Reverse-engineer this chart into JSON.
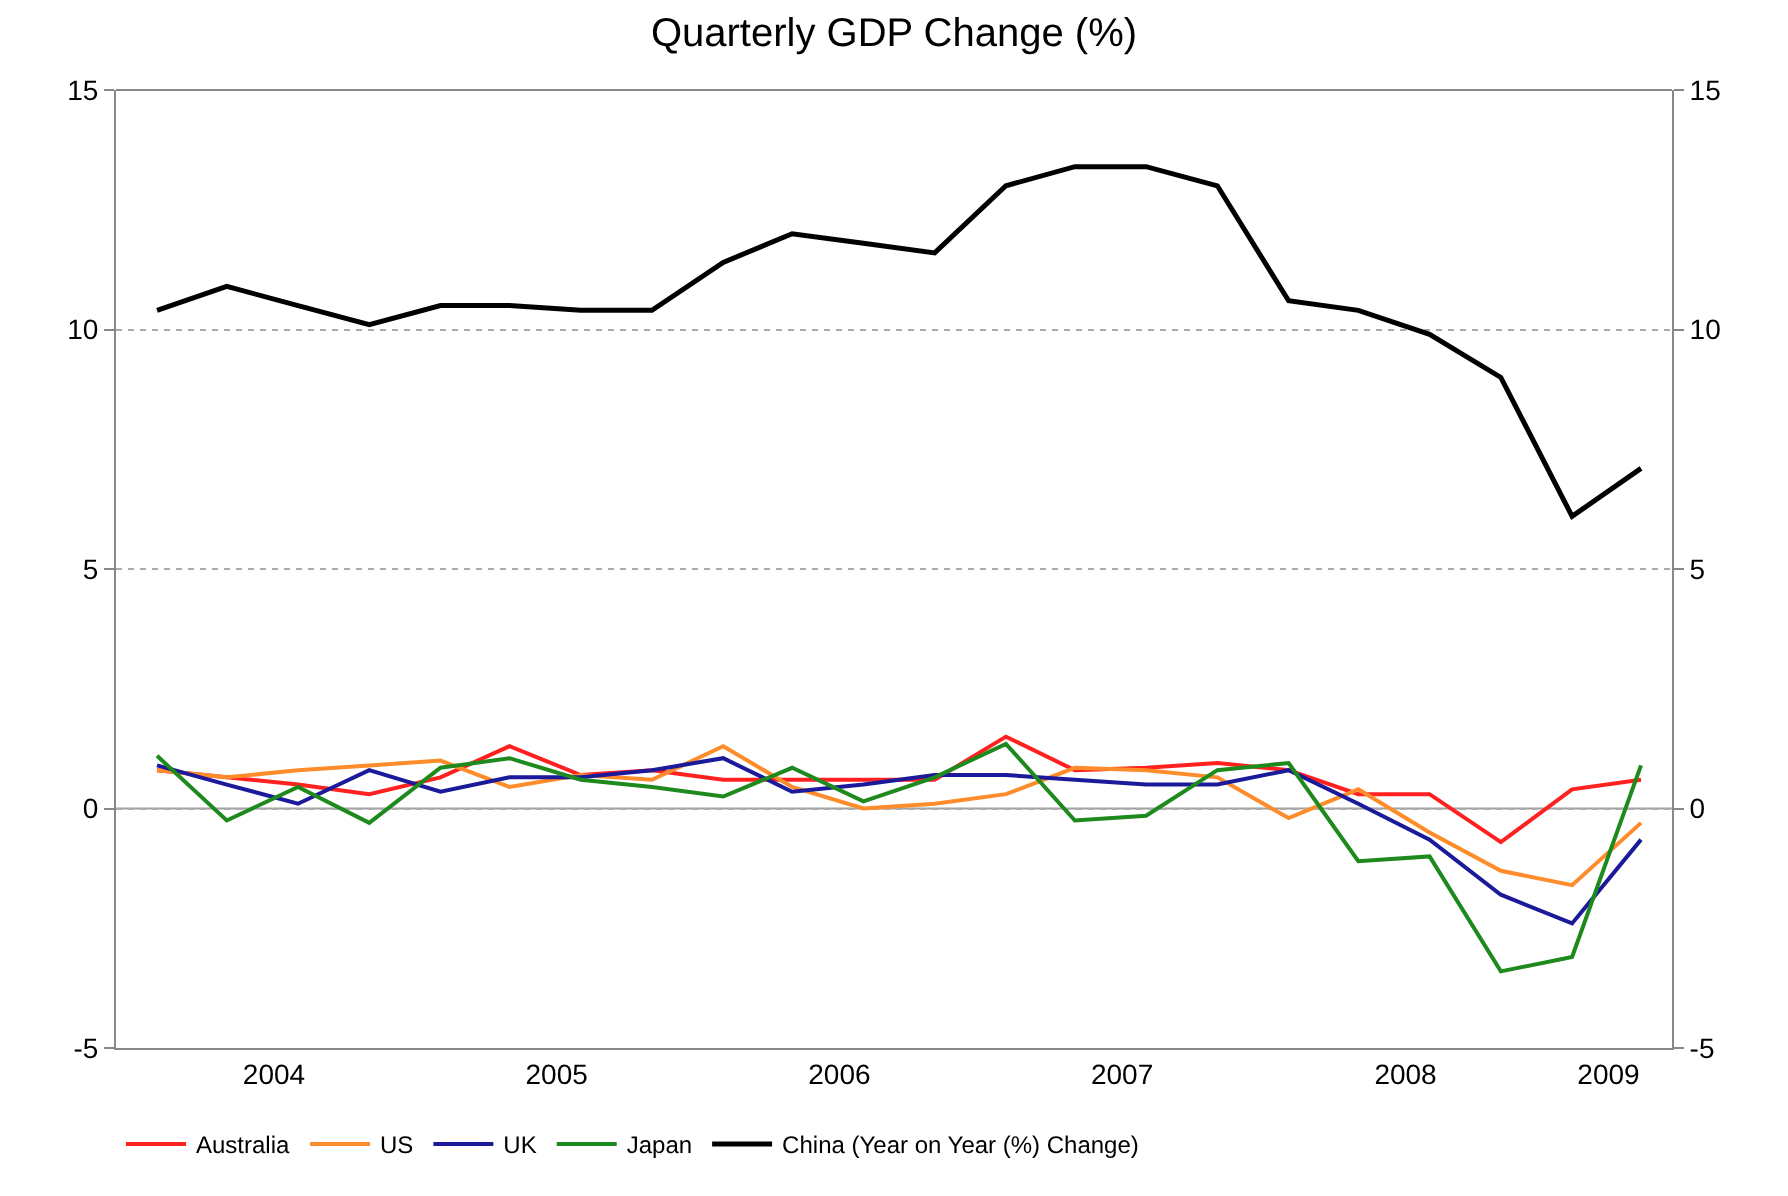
{
  "chart_data": {
    "type": "line",
    "title": "Quarterly GDP Change (%)",
    "x": [
      "2004-02",
      "2004-05",
      "2004-08",
      "2004-11",
      "2005-02",
      "2005-05",
      "2005-08",
      "2005-11",
      "2006-02",
      "2006-05",
      "2006-08",
      "2006-11",
      "2007-02",
      "2007-05",
      "2007-08",
      "2007-11",
      "2008-02",
      "2008-05",
      "2008-08",
      "2008-11",
      "2009-02",
      "2009-05"
    ],
    "series": [
      {
        "name": "Australia",
        "color": "#ff2020",
        "values": [
          0.8,
          0.65,
          0.5,
          0.3,
          0.65,
          1.3,
          0.7,
          0.8,
          0.6,
          0.6,
          0.6,
          0.6,
          1.5,
          0.8,
          0.85,
          0.95,
          0.8,
          0.3,
          0.3,
          -0.7,
          0.4,
          0.6
        ]
      },
      {
        "name": "US",
        "color": "#ff8c2a",
        "values": [
          0.8,
          0.65,
          0.8,
          0.9,
          1.0,
          0.45,
          0.7,
          0.6,
          1.3,
          0.45,
          0.0,
          0.1,
          0.3,
          0.85,
          0.8,
          0.65,
          -0.2,
          0.4,
          -0.5,
          -1.3,
          -1.6,
          -0.3
        ]
      },
      {
        "name": "UK",
        "color": "#1a1a9a",
        "values": [
          0.9,
          0.5,
          0.1,
          0.8,
          0.35,
          0.65,
          0.65,
          0.8,
          1.05,
          0.35,
          0.5,
          0.7,
          0.7,
          0.6,
          0.5,
          0.5,
          0.8,
          0.1,
          -0.65,
          -1.8,
          -2.4,
          -0.65
        ]
      },
      {
        "name": "Japan",
        "color": "#1e8a1e",
        "values": [
          1.1,
          -0.25,
          0.45,
          -0.3,
          0.85,
          1.05,
          0.6,
          0.45,
          0.25,
          0.85,
          0.15,
          0.65,
          1.35,
          -0.25,
          -0.15,
          0.8,
          0.95,
          -1.1,
          -1.0,
          -3.4,
          -3.1,
          0.9
        ]
      },
      {
        "name": "China (Year on Year (%) Change)",
        "color": "#000000",
        "values": [
          10.4,
          10.9,
          10.5,
          10.1,
          10.5,
          10.5,
          10.4,
          10.4,
          11.4,
          12.0,
          11.8,
          11.6,
          13.0,
          13.4,
          13.4,
          13.0,
          10.6,
          10.4,
          9.9,
          9.0,
          6.1,
          7.1
        ]
      }
    ],
    "xlim": [
      "2003-12-10",
      "2009-06-10"
    ],
    "xticks": [
      {
        "value": "2004-07-01",
        "label": "2004"
      },
      {
        "value": "2005-07-01",
        "label": "2005"
      },
      {
        "value": "2006-07-01",
        "label": "2006"
      },
      {
        "value": "2007-07-01",
        "label": "2007"
      },
      {
        "value": "2008-07-01",
        "label": "2008"
      },
      {
        "value": "2009-03-20",
        "label": "2009"
      }
    ],
    "ylim": [
      -5,
      15
    ],
    "yticks": [
      -5,
      0,
      5,
      10,
      15
    ],
    "y2lim": [
      -5,
      15
    ],
    "y2ticks": [
      -5,
      0,
      5,
      10,
      15
    ],
    "ref_lines": [
      {
        "axis": "y",
        "value": 0,
        "color": "#a0a0a0",
        "line_style": "solid"
      }
    ],
    "grid": "y",
    "legend": "bottom",
    "marker": "none",
    "line_style": "solid"
  }
}
